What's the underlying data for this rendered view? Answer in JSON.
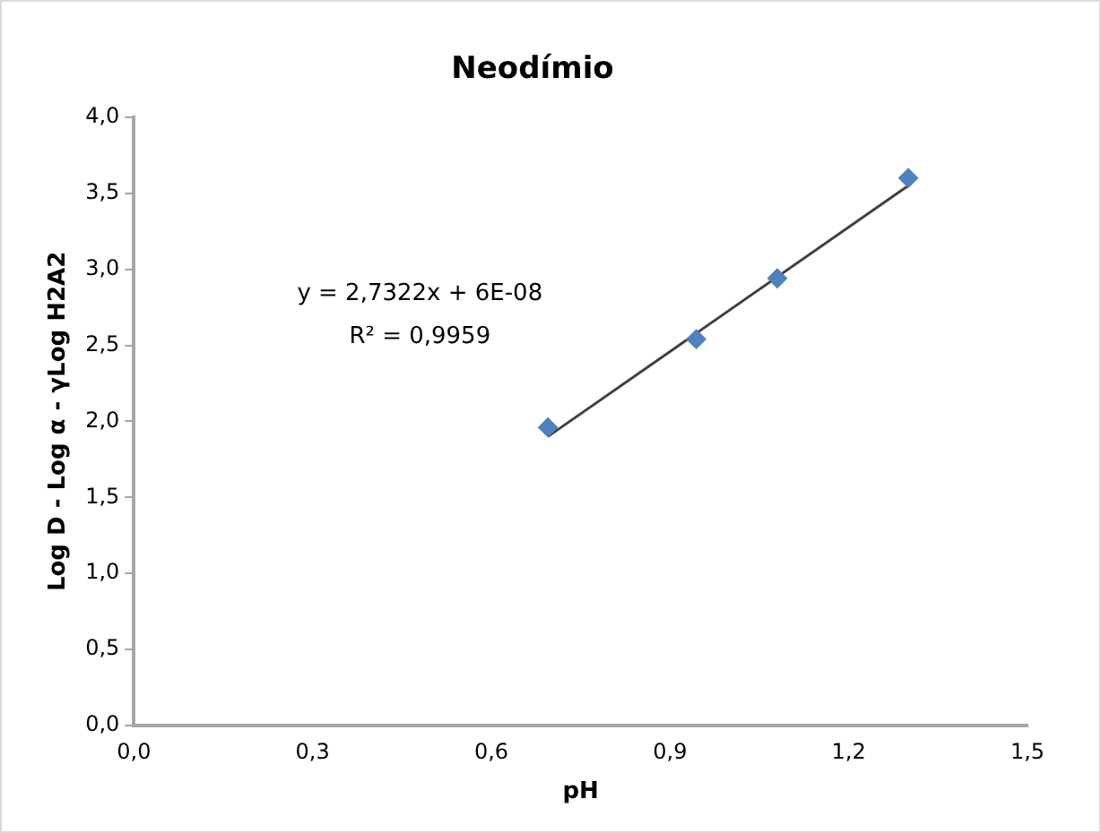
{
  "chart_data": {
    "type": "scatter",
    "title": "Neodímio",
    "xlabel": "pH",
    "ylabel": "Log D - Log α - γLog H2A2",
    "xlim": [
      0,
      1.5
    ],
    "xticks": [
      {
        "value": 0,
        "label": "0,0"
      },
      {
        "value": 0.3,
        "label": "0,3"
      },
      {
        "value": 0.6,
        "label": "0,6"
      },
      {
        "value": 0.9,
        "label": "0,9"
      },
      {
        "value": 1.2,
        "label": "1,2"
      },
      {
        "value": 1.5,
        "label": "1,5"
      }
    ],
    "ylim": [
      0,
      4
    ],
    "yticks": [
      {
        "value": 0,
        "label": "0,0"
      },
      {
        "value": 0.5,
        "label": "0,5"
      },
      {
        "value": 1,
        "label": "1,0"
      },
      {
        "value": 1.5,
        "label": "1,5"
      },
      {
        "value": 2,
        "label": "2,0"
      },
      {
        "value": 2.5,
        "label": "2,5"
      },
      {
        "value": 3,
        "label": "3,0"
      },
      {
        "value": 3.5,
        "label": "3,5"
      },
      {
        "value": 4,
        "label": "4,0"
      }
    ],
    "grid": false,
    "legend": false,
    "series": [
      {
        "marker": "diamond",
        "color": "#4f81bd",
        "x": [
          0.695,
          0.944,
          1.08,
          1.3
        ],
        "values": [
          1.96,
          2.54,
          2.94,
          3.6
        ]
      },
      {
        "type": "line",
        "marker": "none",
        "color": "#404040",
        "x": [
          0.695,
          1.3
        ],
        "values": [
          1.9,
          3.55
        ]
      }
    ],
    "annotations": [
      "y = 2,7322x + 6E-08",
      "R² = 0,9959"
    ]
  }
}
